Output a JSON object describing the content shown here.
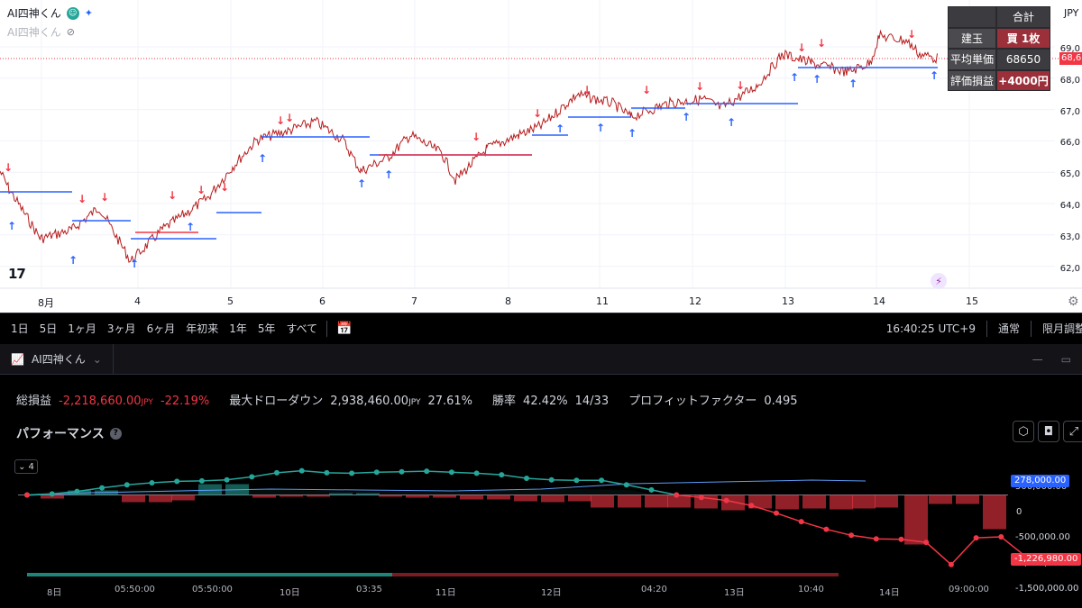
{
  "legend": {
    "title": "AI四神くん",
    "title2": "AI四神くん",
    "badge_icon": "eye-gaze-icon",
    "sparkle_icon": "sparkle-icon",
    "hidden_icon": "eye-off-icon"
  },
  "price_axis": {
    "currency": "JPY",
    "labels": [
      "69,0",
      "68,0",
      "67,0",
      "66,0",
      "65,0",
      "64,0",
      "63,0",
      "62,0"
    ],
    "current": "68,6"
  },
  "time_axis": {
    "labels": [
      "8月",
      "4",
      "5",
      "6",
      "7",
      "8",
      "11",
      "12",
      "13",
      "14",
      "15"
    ]
  },
  "position_table": {
    "header": "合計",
    "rows": [
      {
        "label": "建玉",
        "value": "買 1枚"
      },
      {
        "label": "平均単価",
        "value": "68650"
      },
      {
        "label": "評価損益",
        "value": "+4000円"
      }
    ]
  },
  "toolbar": {
    "ranges": [
      "1日",
      "5日",
      "1ヶ月",
      "3ヶ月",
      "6ヶ月",
      "年初来",
      "1年",
      "5年",
      "すべて"
    ],
    "clock": "16:40:25 UTC+9",
    "mode": "通常",
    "limit": "限月調整"
  },
  "panel": {
    "tab": "AI四神くん",
    "tab_icon": "strategy-chart-icon"
  },
  "stats": {
    "net_label": "総損益",
    "net_value": "-2,218,660.00",
    "net_unit": "JPY",
    "net_pct": "-22.19%",
    "dd_label": "最大ドローダウン",
    "dd_value": "2,938,460.00",
    "dd_unit": "JPY",
    "dd_pct": "27.61%",
    "wr_label": "勝率",
    "wr_pct": "42.42%",
    "wr_ratio": "14/33",
    "pf_label": "プロフィットファクター",
    "pf_value": "0.495"
  },
  "performance": {
    "title": "パフォーマンス",
    "selector": "4",
    "y_labels": [
      "500,000.00",
      "0",
      "-500,000.00",
      "-1,000,000.00",
      "-1,500,000.00"
    ],
    "callout_blue": "278,000.00",
    "callout_red": "-1,226,980.00",
    "x_labels": [
      "8日",
      "05:50:00",
      "05:50:00",
      "10日",
      "03:35",
      "11日",
      "12日",
      "04:20",
      "13日",
      "10:40",
      "14日",
      "09:00:00"
    ]
  },
  "chart_data": {
    "type": "line",
    "title": "",
    "series": [
      {
        "name": "",
        "color": "#26a69a",
        "values": [
          0,
          20000,
          70000,
          140000,
          200000,
          240000,
          270000,
          280000,
          300000,
          360000,
          440000,
          480000,
          440000,
          430000,
          450000,
          460000,
          470000,
          450000,
          430000,
          400000,
          330000,
          300000,
          290000,
          290000,
          200000,
          100000,
          0
        ]
      },
      {
        "name": "",
        "color": "#f23645",
        "values": [
          0,
          -50000,
          -110000,
          -210000,
          -360000,
          -530000,
          -680000,
          -800000,
          -870000,
          -880000,
          -940000,
          -1380000,
          -850000,
          -830000,
          -1226980
        ]
      }
    ],
    "colors": {
      "up": "#26a69a",
      "down": "#f23645",
      "position": "#2962ff"
    }
  }
}
